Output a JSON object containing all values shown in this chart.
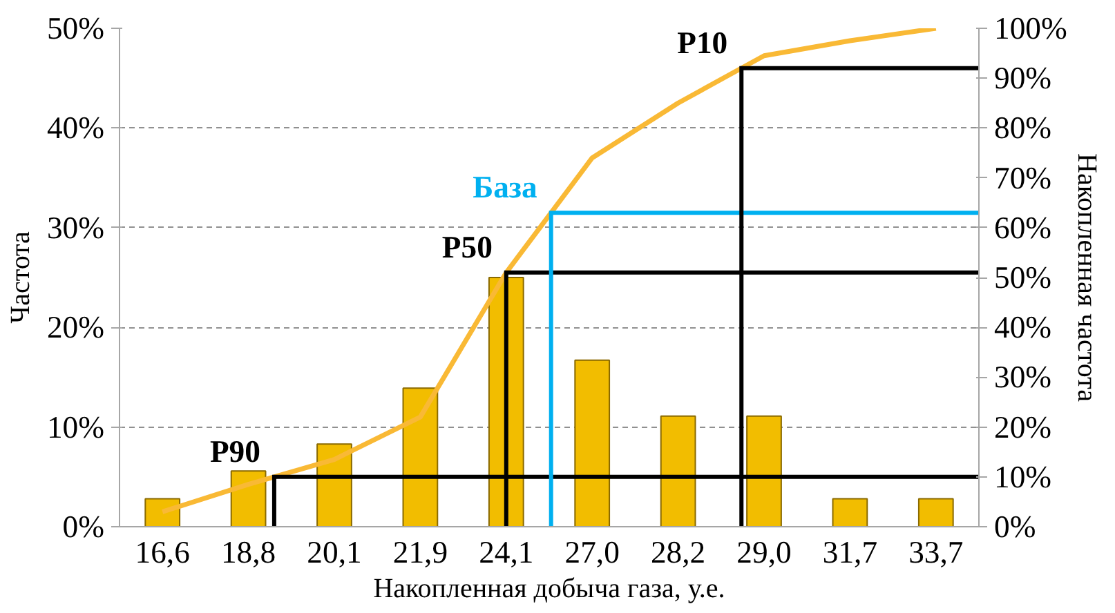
{
  "chart_data": {
    "type": "bar",
    "xlabel": "Накопленная добыча газа, у.е.",
    "ylabel": "Частота",
    "y2label": "Накопленная частота",
    "categories": [
      "16,6",
      "18,8",
      "20,1",
      "21,9",
      "24,1",
      "27,0",
      "28,2",
      "29,0",
      "31,7",
      "33,7"
    ],
    "ylim": [
      0,
      50
    ],
    "yticks": [
      {
        "value": 0,
        "label": "0%"
      },
      {
        "value": 10,
        "label": "10%"
      },
      {
        "value": 20,
        "label": "20%"
      },
      {
        "value": 30,
        "label": "30%"
      },
      {
        "value": 40,
        "label": "40%"
      },
      {
        "value": 50,
        "label": "50%"
      }
    ],
    "y2lim": [
      0,
      100
    ],
    "y2ticks": [
      {
        "value": 0,
        "label": "0%"
      },
      {
        "value": 10,
        "label": "10%"
      },
      {
        "value": 20,
        "label": "20%"
      },
      {
        "value": 30,
        "label": "30%"
      },
      {
        "value": 40,
        "label": "40%"
      },
      {
        "value": 50,
        "label": "50%"
      },
      {
        "value": 60,
        "label": "60%"
      },
      {
        "value": 70,
        "label": "70%"
      },
      {
        "value": 80,
        "label": "80%"
      },
      {
        "value": 90,
        "label": "90%"
      },
      {
        "value": 100,
        "label": "100%"
      }
    ],
    "grid": "y",
    "series": [
      {
        "color": "#f2bd00",
        "values": [
          2.8,
          5.6,
          8.3,
          13.9,
          25,
          16.7,
          11.1,
          11.1,
          2.8,
          2.8
        ]
      },
      {
        "type": "line",
        "axis": "y2",
        "color": "#f9b935",
        "values": [
          3,
          8.5,
          13.5,
          22,
          51,
          74,
          85,
          94.5,
          97.5,
          100
        ]
      }
    ],
    "ref_lines": [
      {
        "axis": "y2",
        "value": 10,
        "label": "P90",
        "color": "#000000"
      },
      {
        "axis": "y2",
        "value": 51,
        "label": "P50",
        "color": "#000000"
      },
      {
        "axis": "y2",
        "value": 63,
        "label": "База",
        "color": "#00b0f0"
      },
      {
        "axis": "y2",
        "value": 92,
        "label": "P10",
        "color": "#000000"
      }
    ]
  }
}
